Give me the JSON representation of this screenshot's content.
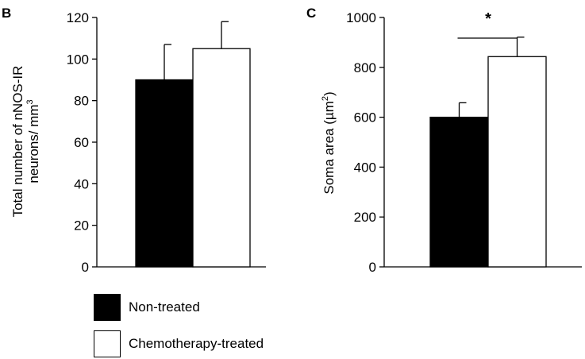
{
  "chart_data": [
    {
      "panel_label": "B",
      "type": "bar",
      "categories": [
        "Non-treated",
        "Chemotherapy-treated"
      ],
      "values": [
        90,
        105
      ],
      "errors": [
        17,
        13
      ],
      "ylabel_line1": "Total number of nNOS-IR",
      "ylabel_line2": "neurons/ mm",
      "ylabel_sup": "3",
      "ylim": [
        0,
        120
      ],
      "yticks": [
        "0",
        "20",
        "40",
        "60",
        "80",
        "100",
        "120"
      ],
      "significance": ""
    },
    {
      "panel_label": "C",
      "type": "bar",
      "categories": [
        "Non-treated",
        "Chemotherapy-treated"
      ],
      "values": [
        600,
        843
      ],
      "errors": [
        58,
        78
      ],
      "ylabel_line1": "Soma area (µm",
      "ylabel_sup": "2",
      "ylabel_end": ")",
      "ylim": [
        0,
        1000
      ],
      "yticks": [
        "0",
        "200",
        "400",
        "600",
        "800",
        "1000"
      ],
      "significance": "*"
    }
  ],
  "legend": [
    {
      "label": "Non-treated",
      "color": "#000000"
    },
    {
      "label": "Chemotherapy-treated",
      "color": "#ffffff"
    }
  ],
  "colors": {
    "bar_colors": [
      "#000000",
      "#ffffff"
    ],
    "stroke": "#000000"
  }
}
